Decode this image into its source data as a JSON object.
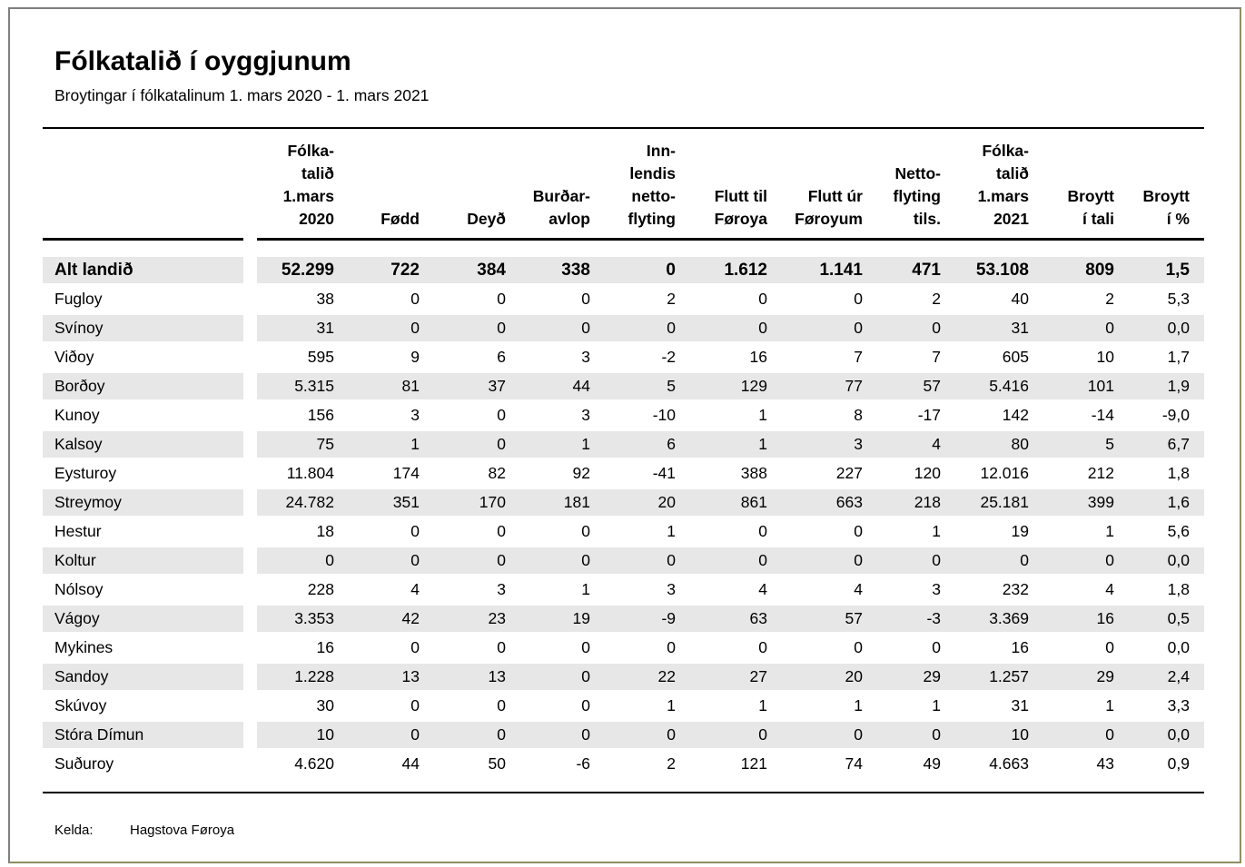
{
  "page": {
    "title": "Fólkatalið í oyggjunum",
    "subtitle": "Broytingar í fólkatalinum 1. mars 2020 - 1. mars 2021",
    "source_label": "Kelda:",
    "source_value": "Hagstova Føroya"
  },
  "colors": {
    "stripe": "#e7e7e7",
    "rule": "#000000",
    "frame_top_left": "#7f7f7f",
    "frame_bottom_right": "#8f8f62"
  },
  "table": {
    "columns": [
      {
        "label": "Fólka-\ntalið\n1.mars\n2020"
      },
      {
        "label": "Fødd"
      },
      {
        "label": "Deyð"
      },
      {
        "label": "Burðar-\navlop"
      },
      {
        "label": "Inn-\nlendis\nnetto-\nflyting"
      },
      {
        "label": "Flutt til\nFøroya"
      },
      {
        "label": "Flutt úr\nFøroyum"
      },
      {
        "label": "Netto-\nflyting\ntils."
      },
      {
        "label": "Fólka-\ntalið\n1.mars\n2021"
      },
      {
        "label": "Broytt\ní tali"
      },
      {
        "label": "Broytt\ní %"
      }
    ],
    "rows": [
      {
        "name": "Alt landið",
        "emphasis": true,
        "values": [
          "52.299",
          "722",
          "384",
          "338",
          "0",
          "1.612",
          "1.141",
          "471",
          "53.108",
          "809",
          "1,5"
        ]
      },
      {
        "name": "Fugloy",
        "emphasis": false,
        "values": [
          "38",
          "0",
          "0",
          "0",
          "2",
          "0",
          "0",
          "2",
          "40",
          "2",
          "5,3"
        ]
      },
      {
        "name": "Svínoy",
        "emphasis": false,
        "values": [
          "31",
          "0",
          "0",
          "0",
          "0",
          "0",
          "0",
          "0",
          "31",
          "0",
          "0,0"
        ]
      },
      {
        "name": "Viðoy",
        "emphasis": false,
        "values": [
          "595",
          "9",
          "6",
          "3",
          "-2",
          "16",
          "7",
          "7",
          "605",
          "10",
          "1,7"
        ]
      },
      {
        "name": "Borðoy",
        "emphasis": false,
        "values": [
          "5.315",
          "81",
          "37",
          "44",
          "5",
          "129",
          "77",
          "57",
          "5.416",
          "101",
          "1,9"
        ]
      },
      {
        "name": "Kunoy",
        "emphasis": false,
        "values": [
          "156",
          "3",
          "0",
          "3",
          "-10",
          "1",
          "8",
          "-17",
          "142",
          "-14",
          "-9,0"
        ]
      },
      {
        "name": "Kalsoy",
        "emphasis": false,
        "values": [
          "75",
          "1",
          "0",
          "1",
          "6",
          "1",
          "3",
          "4",
          "80",
          "5",
          "6,7"
        ]
      },
      {
        "name": "Eysturoy",
        "emphasis": false,
        "values": [
          "11.804",
          "174",
          "82",
          "92",
          "-41",
          "388",
          "227",
          "120",
          "12.016",
          "212",
          "1,8"
        ]
      },
      {
        "name": "Streymoy",
        "emphasis": false,
        "values": [
          "24.782",
          "351",
          "170",
          "181",
          "20",
          "861",
          "663",
          "218",
          "25.181",
          "399",
          "1,6"
        ]
      },
      {
        "name": "Hestur",
        "emphasis": false,
        "values": [
          "18",
          "0",
          "0",
          "0",
          "1",
          "0",
          "0",
          "1",
          "19",
          "1",
          "5,6"
        ]
      },
      {
        "name": "Koltur",
        "emphasis": false,
        "values": [
          "0",
          "0",
          "0",
          "0",
          "0",
          "0",
          "0",
          "0",
          "0",
          "0",
          "0,0"
        ]
      },
      {
        "name": "Nólsoy",
        "emphasis": false,
        "values": [
          "228",
          "4",
          "3",
          "1",
          "3",
          "4",
          "4",
          "3",
          "232",
          "4",
          "1,8"
        ]
      },
      {
        "name": "Vágoy",
        "emphasis": false,
        "values": [
          "3.353",
          "42",
          "23",
          "19",
          "-9",
          "63",
          "57",
          "-3",
          "3.369",
          "16",
          "0,5"
        ]
      },
      {
        "name": "Mykines",
        "emphasis": false,
        "values": [
          "16",
          "0",
          "0",
          "0",
          "0",
          "0",
          "0",
          "0",
          "16",
          "0",
          "0,0"
        ]
      },
      {
        "name": "Sandoy",
        "emphasis": false,
        "values": [
          "1.228",
          "13",
          "13",
          "0",
          "22",
          "27",
          "20",
          "29",
          "1.257",
          "29",
          "2,4"
        ]
      },
      {
        "name": "Skúvoy",
        "emphasis": false,
        "values": [
          "30",
          "0",
          "0",
          "0",
          "1",
          "1",
          "1",
          "1",
          "31",
          "1",
          "3,3"
        ]
      },
      {
        "name": "Stóra Dímun",
        "emphasis": false,
        "values": [
          "10",
          "0",
          "0",
          "0",
          "0",
          "0",
          "0",
          "0",
          "10",
          "0",
          "0,0"
        ]
      },
      {
        "name": "Suðuroy",
        "emphasis": false,
        "values": [
          "4.620",
          "44",
          "50",
          "-6",
          "2",
          "121",
          "74",
          "49",
          "4.663",
          "43",
          "0,9"
        ]
      }
    ]
  }
}
